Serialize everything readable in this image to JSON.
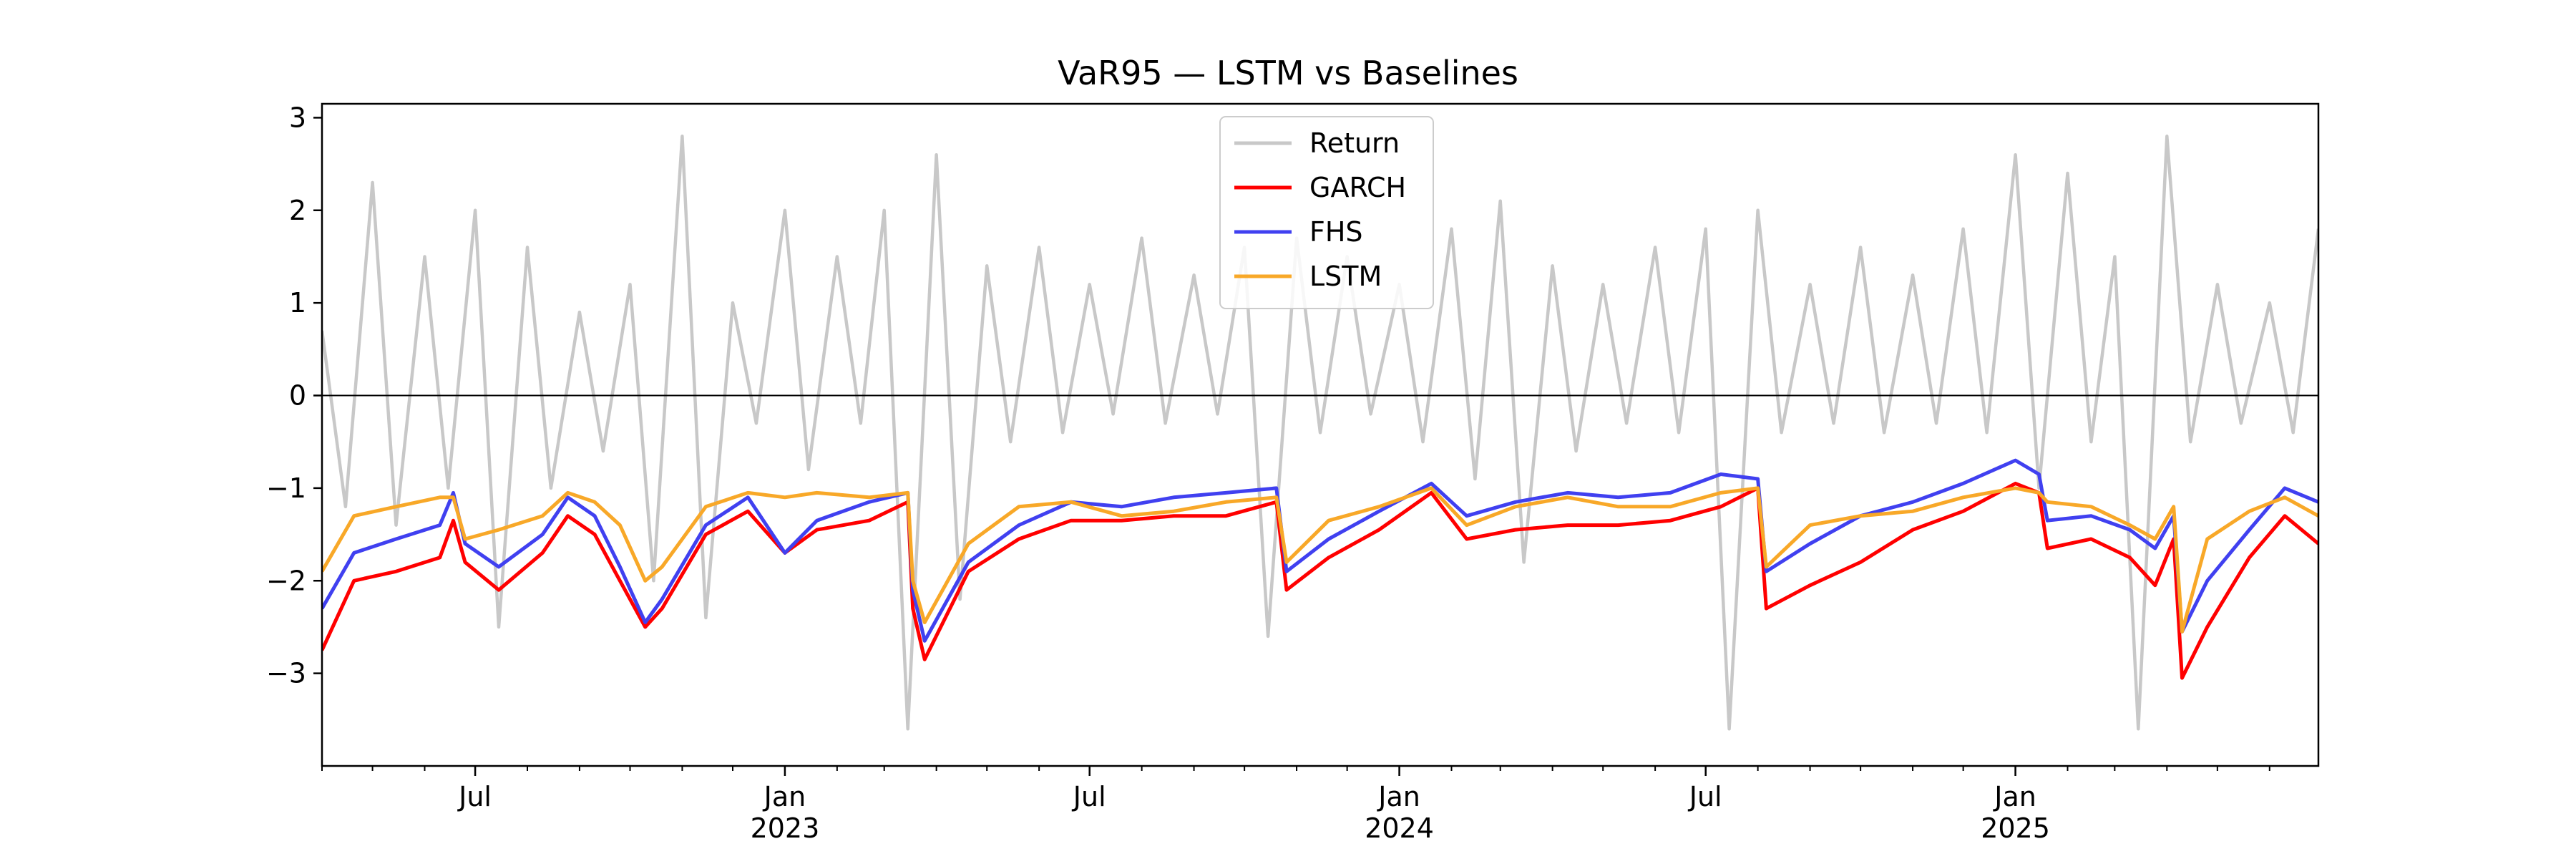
{
  "chart_data": {
    "type": "line",
    "title": "VaR95 — LSTM vs Baselines",
    "xlabel": "",
    "ylabel": "",
    "x_range": [
      "2022-04-01",
      "2025-06-30"
    ],
    "ylim": [
      -4.0,
      3.15
    ],
    "yticks": [
      -3,
      -2,
      -1,
      0,
      1,
      2,
      3
    ],
    "ytick_labels": [
      "−3",
      "−2",
      "−1",
      "0",
      "1",
      "2",
      "3"
    ],
    "xticks": [
      {
        "date": "2022-07-01",
        "label": "Jul",
        "sublabel": ""
      },
      {
        "date": "2023-01-01",
        "label": "Jan",
        "sublabel": "2023"
      },
      {
        "date": "2023-07-01",
        "label": "Jul",
        "sublabel": ""
      },
      {
        "date": "2024-01-01",
        "label": "Jan",
        "sublabel": "2024"
      },
      {
        "date": "2024-07-01",
        "label": "Jul",
        "sublabel": ""
      },
      {
        "date": "2025-01-01",
        "label": "Jan",
        "sublabel": "2025"
      }
    ],
    "grid": false,
    "zero_line": true,
    "legend_position": "top-center",
    "series": [
      {
        "name": "Return",
        "color": "#c8c8c8",
        "x": [
          "2022-04-01",
          "2022-04-15",
          "2022-05-01",
          "2022-05-15",
          "2022-06-01",
          "2022-06-15",
          "2022-07-01",
          "2022-07-15",
          "2022-08-01",
          "2022-08-15",
          "2022-09-01",
          "2022-09-15",
          "2022-10-01",
          "2022-10-15",
          "2022-11-01",
          "2022-11-15",
          "2022-12-01",
          "2022-12-15",
          "2023-01-01",
          "2023-01-15",
          "2023-02-01",
          "2023-02-15",
          "2023-03-01",
          "2023-03-15",
          "2023-04-01",
          "2023-04-15",
          "2023-05-01",
          "2023-05-15",
          "2023-06-01",
          "2023-06-15",
          "2023-07-01",
          "2023-07-15",
          "2023-08-01",
          "2023-08-15",
          "2023-09-01",
          "2023-09-15",
          "2023-10-01",
          "2023-10-15",
          "2023-11-01",
          "2023-11-15",
          "2023-12-01",
          "2023-12-15",
          "2024-01-01",
          "2024-01-15",
          "2024-02-01",
          "2024-02-15",
          "2024-03-01",
          "2024-03-15",
          "2024-04-01",
          "2024-04-15",
          "2024-05-01",
          "2024-05-15",
          "2024-06-01",
          "2024-06-15",
          "2024-07-01",
          "2024-07-15",
          "2024-08-01",
          "2024-08-15",
          "2024-09-01",
          "2024-09-15",
          "2024-10-01",
          "2024-10-15",
          "2024-11-01",
          "2024-11-15",
          "2024-12-01",
          "2024-12-15",
          "2025-01-01",
          "2025-01-15",
          "2025-02-01",
          "2025-02-15",
          "2025-03-01",
          "2025-03-15",
          "2025-04-01",
          "2025-04-15",
          "2025-05-01",
          "2025-05-15",
          "2025-06-01",
          "2025-06-15",
          "2025-06-30"
        ],
        "values": [
          0.7,
          -1.2,
          2.3,
          -1.4,
          1.5,
          -1.0,
          2.0,
          -2.5,
          1.6,
          -1.0,
          0.9,
          -0.6,
          1.2,
          -2.0,
          2.8,
          -2.4,
          1.0,
          -0.3,
          2.0,
          -0.8,
          1.5,
          -0.3,
          2.0,
          -3.6,
          2.6,
          -2.2,
          1.4,
          -0.5,
          1.6,
          -0.4,
          1.2,
          -0.2,
          1.7,
          -0.3,
          1.3,
          -0.2,
          1.6,
          -2.6,
          1.7,
          -0.4,
          1.5,
          -0.2,
          1.2,
          -0.5,
          1.8,
          -0.9,
          2.1,
          -1.8,
          1.4,
          -0.6,
          1.2,
          -0.3,
          1.6,
          -0.4,
          1.8,
          -3.6,
          2.0,
          -0.4,
          1.2,
          -0.3,
          1.6,
          -0.4,
          1.3,
          -0.3,
          1.8,
          -0.4,
          2.6,
          -1.0,
          2.4,
          -0.5,
          1.5,
          -3.6,
          2.8,
          -0.5,
          1.2,
          -0.3,
          1.0,
          -0.4,
          1.8
        ]
      },
      {
        "name": "GARCH",
        "color": "#ff0000",
        "x": [
          "2022-04-01",
          "2022-04-20",
          "2022-05-15",
          "2022-06-10",
          "2022-06-18",
          "2022-06-25",
          "2022-07-15",
          "2022-08-10",
          "2022-08-25",
          "2022-09-10",
          "2022-09-25",
          "2022-10-10",
          "2022-10-20",
          "2022-11-15",
          "2022-12-10",
          "2023-01-01",
          "2023-01-20",
          "2023-02-20",
          "2023-03-15",
          "2023-03-18",
          "2023-03-25",
          "2023-04-20",
          "2023-05-20",
          "2023-06-20",
          "2023-07-20",
          "2023-08-20",
          "2023-09-20",
          "2023-10-20",
          "2023-10-26",
          "2023-11-20",
          "2023-12-20",
          "2024-01-20",
          "2024-02-10",
          "2024-03-10",
          "2024-04-10",
          "2024-05-10",
          "2024-06-10",
          "2024-07-10",
          "2024-08-01",
          "2024-08-06",
          "2024-09-01",
          "2024-10-01",
          "2024-11-01",
          "2024-12-01",
          "2025-01-01",
          "2025-01-15",
          "2025-01-20",
          "2025-02-15",
          "2025-03-10",
          "2025-03-25",
          "2025-04-05",
          "2025-04-10",
          "2025-04-25",
          "2025-05-20",
          "2025-06-10",
          "2025-06-30"
        ],
        "values": [
          -2.75,
          -2.0,
          -1.9,
          -1.75,
          -1.35,
          -1.8,
          -2.1,
          -1.7,
          -1.3,
          -1.5,
          -2.0,
          -2.5,
          -2.3,
          -1.5,
          -1.25,
          -1.7,
          -1.45,
          -1.35,
          -1.15,
          -2.3,
          -2.85,
          -1.9,
          -1.55,
          -1.35,
          -1.35,
          -1.3,
          -1.3,
          -1.15,
          -2.1,
          -1.75,
          -1.45,
          -1.05,
          -1.55,
          -1.45,
          -1.4,
          -1.4,
          -1.35,
          -1.2,
          -1.0,
          -2.3,
          -2.05,
          -1.8,
          -1.45,
          -1.25,
          -0.95,
          -1.05,
          -1.65,
          -1.55,
          -1.75,
          -2.05,
          -1.55,
          -3.05,
          -2.5,
          -1.75,
          -1.3,
          -1.6
        ]
      },
      {
        "name": "FHS",
        "color": "#4040f0",
        "x": [
          "2022-04-01",
          "2022-04-20",
          "2022-05-15",
          "2022-06-10",
          "2022-06-18",
          "2022-06-25",
          "2022-07-15",
          "2022-08-10",
          "2022-08-25",
          "2022-09-10",
          "2022-09-25",
          "2022-10-10",
          "2022-10-20",
          "2022-11-15",
          "2022-12-10",
          "2023-01-01",
          "2023-01-20",
          "2023-02-20",
          "2023-03-15",
          "2023-03-18",
          "2023-03-25",
          "2023-04-20",
          "2023-05-20",
          "2023-06-20",
          "2023-07-20",
          "2023-08-20",
          "2023-09-20",
          "2023-10-20",
          "2023-10-26",
          "2023-11-20",
          "2023-12-20",
          "2024-01-20",
          "2024-02-10",
          "2024-03-10",
          "2024-04-10",
          "2024-05-10",
          "2024-06-10",
          "2024-07-10",
          "2024-08-01",
          "2024-08-06",
          "2024-09-01",
          "2024-10-01",
          "2024-11-01",
          "2024-12-01",
          "2025-01-01",
          "2025-01-15",
          "2025-01-20",
          "2025-02-15",
          "2025-03-10",
          "2025-03-25",
          "2025-04-05",
          "2025-04-10",
          "2025-04-25",
          "2025-05-20",
          "2025-06-10",
          "2025-06-30"
        ],
        "values": [
          -2.3,
          -1.7,
          -1.55,
          -1.4,
          -1.05,
          -1.6,
          -1.85,
          -1.5,
          -1.1,
          -1.3,
          -1.85,
          -2.45,
          -2.2,
          -1.4,
          -1.1,
          -1.7,
          -1.35,
          -1.15,
          -1.05,
          -2.1,
          -2.65,
          -1.8,
          -1.4,
          -1.15,
          -1.2,
          -1.1,
          -1.05,
          -1.0,
          -1.9,
          -1.55,
          -1.25,
          -0.95,
          -1.3,
          -1.15,
          -1.05,
          -1.1,
          -1.05,
          -0.85,
          -0.9,
          -1.9,
          -1.6,
          -1.3,
          -1.15,
          -0.95,
          -0.7,
          -0.85,
          -1.35,
          -1.3,
          -1.45,
          -1.65,
          -1.3,
          -2.55,
          -2.0,
          -1.45,
          -1.0,
          -1.15
        ]
      },
      {
        "name": "LSTM",
        "color": "#f8a828",
        "x": [
          "2022-04-01",
          "2022-04-20",
          "2022-05-15",
          "2022-06-10",
          "2022-06-18",
          "2022-06-25",
          "2022-07-15",
          "2022-08-10",
          "2022-08-25",
          "2022-09-10",
          "2022-09-25",
          "2022-10-10",
          "2022-10-20",
          "2022-11-15",
          "2022-12-10",
          "2023-01-01",
          "2023-01-20",
          "2023-02-20",
          "2023-03-15",
          "2023-03-18",
          "2023-03-25",
          "2023-04-20",
          "2023-05-20",
          "2023-06-20",
          "2023-07-20",
          "2023-08-20",
          "2023-09-20",
          "2023-10-20",
          "2023-10-26",
          "2023-11-20",
          "2023-12-20",
          "2024-01-20",
          "2024-02-10",
          "2024-03-10",
          "2024-04-10",
          "2024-05-10",
          "2024-06-10",
          "2024-07-10",
          "2024-08-01",
          "2024-08-06",
          "2024-09-01",
          "2024-10-01",
          "2024-11-01",
          "2024-12-01",
          "2025-01-01",
          "2025-01-15",
          "2025-01-20",
          "2025-02-15",
          "2025-03-10",
          "2025-03-25",
          "2025-04-05",
          "2025-04-10",
          "2025-04-25",
          "2025-05-20",
          "2025-06-10",
          "2025-06-30"
        ],
        "values": [
          -1.9,
          -1.3,
          -1.2,
          -1.1,
          -1.1,
          -1.55,
          -1.45,
          -1.3,
          -1.05,
          -1.15,
          -1.4,
          -2.0,
          -1.85,
          -1.2,
          -1.05,
          -1.1,
          -1.05,
          -1.1,
          -1.05,
          -2.0,
          -2.45,
          -1.6,
          -1.2,
          -1.15,
          -1.3,
          -1.25,
          -1.15,
          -1.1,
          -1.8,
          -1.35,
          -1.2,
          -1.0,
          -1.4,
          -1.2,
          -1.1,
          -1.2,
          -1.2,
          -1.05,
          -1.0,
          -1.85,
          -1.4,
          -1.3,
          -1.25,
          -1.1,
          -1.0,
          -1.05,
          -1.15,
          -1.2,
          -1.4,
          -1.55,
          -1.2,
          -2.55,
          -1.55,
          -1.25,
          -1.1,
          -1.3
        ]
      }
    ]
  }
}
